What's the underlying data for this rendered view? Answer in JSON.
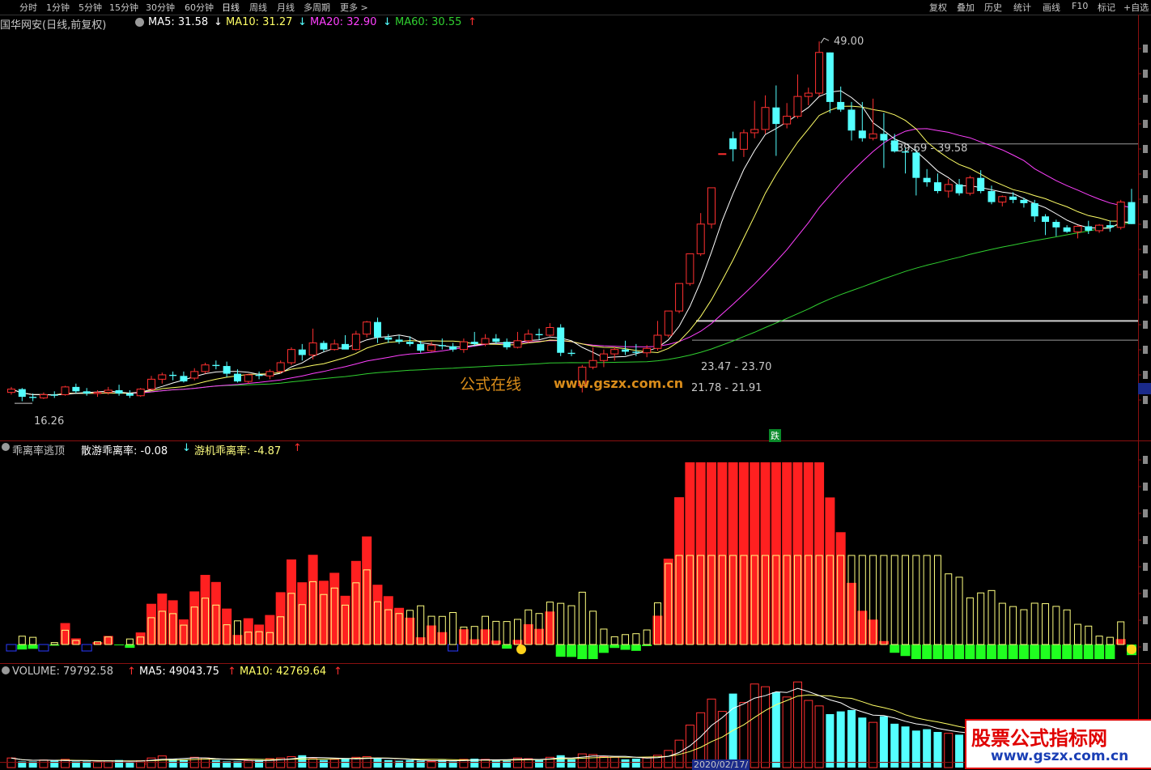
{
  "toolbar": {
    "periods": [
      "分时",
      "1分钟",
      "5分钟",
      "15分钟",
      "30分钟",
      "60分钟",
      "日线",
      "周线",
      "月线",
      "多周期",
      "更多"
    ],
    "active": "日线",
    "right": [
      "复权",
      "叠加",
      "历史",
      "统计",
      "画线",
      "F10",
      "标记",
      "+自选"
    ]
  },
  "header": {
    "stock": "国华网安(日线,前复权)",
    "ma5": "MA5: 31.58",
    "ma10": "MA10: 31.27",
    "ma20": "MA20: 32.90",
    "ma60": "MA60: 30.55"
  },
  "annotations": {
    "high": "49.00",
    "low": "16.26",
    "range1": "39.69 - 39.58",
    "range2": "23.47 - 23.70",
    "range3": "21.78 - 21.91",
    "die": "跌",
    "wm1": "公式在线",
    "wm2": "www.gszx.com.cn",
    "wm3a": "股票公式指标网",
    "wm3b": "www.gszx.com.cn"
  },
  "indicator": {
    "name": "乖离率逃顶",
    "s1": "散游乖离率: -0.08",
    "s2": "游机乖离率: -4.87"
  },
  "volume": {
    "v": "VOLUME: 79792.58",
    "ma5": "MA5: 49043.75",
    "ma10": "MA10: 42769.64",
    "date": "2020/02/17/"
  },
  "colors": {
    "up": "#ff3030",
    "down": "#54ffff",
    "ma5": "#ffffff",
    "ma10": "#ffff66",
    "ma20": "#ff40ff",
    "ma60": "#30d030",
    "s1": "#ff2020",
    "s2": "#ffff80"
  },
  "chart_data": {
    "type": "candlestick",
    "price_range": [
      14.5,
      51
    ],
    "candles": [
      [
        17.1,
        17.6,
        16.9,
        17.4
      ],
      [
        17.4,
        17.5,
        16.3,
        16.7
      ],
      [
        16.7,
        17.0,
        16.3,
        16.6
      ],
      [
        16.6,
        17.1,
        16.5,
        16.9
      ],
      [
        16.9,
        17.2,
        16.6,
        16.8
      ],
      [
        16.9,
        17.7,
        16.8,
        17.6
      ],
      [
        17.6,
        17.9,
        17.0,
        17.2
      ],
      [
        17.2,
        17.5,
        16.8,
        17.0
      ],
      [
        17.0,
        17.3,
        16.7,
        17.1
      ],
      [
        17.1,
        17.6,
        16.9,
        17.3
      ],
      [
        17.3,
        17.8,
        16.8,
        17.0
      ],
      [
        17.0,
        17.3,
        16.6,
        16.8
      ],
      [
        16.8,
        17.5,
        16.7,
        17.4
      ],
      [
        17.4,
        18.6,
        17.3,
        18.3
      ],
      [
        18.3,
        18.9,
        17.9,
        18.7
      ],
      [
        18.7,
        19.0,
        18.2,
        18.6
      ],
      [
        18.6,
        19.0,
        18.0,
        18.1
      ],
      [
        18.4,
        19.3,
        18.2,
        19.0
      ],
      [
        19.0,
        19.8,
        18.8,
        19.6
      ],
      [
        19.6,
        20.0,
        19.2,
        19.5
      ],
      [
        19.5,
        19.9,
        18.5,
        18.8
      ],
      [
        18.8,
        19.2,
        18.0,
        18.1
      ],
      [
        18.1,
        18.8,
        17.9,
        18.7
      ],
      [
        18.7,
        19.0,
        18.3,
        18.6
      ],
      [
        18.6,
        19.2,
        18.3,
        19.0
      ],
      [
        19.0,
        20.0,
        18.8,
        19.8
      ],
      [
        19.8,
        21.2,
        19.6,
        21.0
      ],
      [
        21.0,
        21.5,
        20.0,
        20.5
      ],
      [
        20.5,
        22.9,
        20.1,
        21.6
      ],
      [
        21.6,
        21.8,
        20.8,
        21.0
      ],
      [
        21.0,
        21.9,
        20.9,
        21.5
      ],
      [
        21.5,
        22.3,
        21.2,
        21.0
      ],
      [
        21.0,
        22.7,
        20.9,
        22.4
      ],
      [
        22.4,
        23.6,
        22.1,
        23.5
      ],
      [
        23.5,
        23.9,
        21.6,
        22.1
      ],
      [
        22.1,
        22.4,
        21.6,
        21.9
      ],
      [
        21.9,
        22.3,
        21.5,
        21.7
      ],
      [
        21.7,
        22.2,
        21.3,
        21.5
      ],
      [
        21.5,
        21.8,
        20.7,
        20.9
      ],
      [
        20.9,
        21.7,
        20.8,
        21.4
      ],
      [
        21.4,
        22.0,
        21.0,
        21.3
      ],
      [
        21.3,
        21.6,
        20.8,
        21.0
      ],
      [
        21.0,
        22.0,
        20.7,
        21.7
      ],
      [
        21.7,
        22.6,
        21.3,
        21.5
      ],
      [
        21.5,
        22.4,
        21.3,
        22.0
      ],
      [
        22.0,
        22.4,
        21.5,
        21.7
      ],
      [
        21.7,
        22.0,
        21.0,
        21.2
      ],
      [
        21.2,
        22.6,
        21.1,
        21.8
      ],
      [
        21.8,
        22.8,
        21.6,
        22.4
      ],
      [
        22.4,
        22.9,
        21.9,
        22.3
      ],
      [
        22.3,
        23.4,
        22.2,
        23.0
      ],
      [
        23.0,
        23.3,
        20.4,
        20.7
      ],
      [
        20.7,
        21.0,
        20.4,
        20.6
      ],
      [
        17.7,
        19.6,
        17.1,
        19.4
      ],
      [
        19.4,
        21.2,
        19.2,
        20.0
      ],
      [
        20.0,
        21.0,
        19.4,
        20.6
      ],
      [
        20.6,
        21.2,
        20.0,
        21.0
      ],
      [
        21.0,
        21.8,
        20.5,
        20.8
      ],
      [
        20.8,
        21.5,
        20.4,
        20.7
      ],
      [
        20.7,
        21.4,
        20.3,
        21.1
      ],
      [
        21.1,
        23.6,
        20.9,
        22.3
      ],
      [
        22.3,
        24.5,
        22.1,
        24.5
      ],
      [
        24.5,
        27.0,
        24.3,
        27.0
      ],
      [
        27.0,
        29.7,
        26.8,
        29.7
      ],
      [
        29.7,
        33.4,
        29.5,
        32.4
      ],
      [
        32.4,
        35.7,
        32.0,
        35.7
      ],
      [
        38.8,
        38.8,
        38.8,
        38.8
      ],
      [
        40.2,
        40.8,
        38.1,
        39.2
      ],
      [
        39.2,
        41.0,
        38.5,
        40.7
      ],
      [
        40.7,
        43.6,
        40.2,
        41.0
      ],
      [
        41.0,
        44.1,
        40.6,
        43.0
      ],
      [
        43.0,
        45.0,
        38.6,
        41.5
      ],
      [
        41.5,
        43.4,
        41.1,
        42.2
      ],
      [
        42.2,
        46.0,
        42.0,
        44.0
      ],
      [
        44.0,
        44.8,
        43.2,
        44.3
      ],
      [
        44.3,
        49.0,
        44.0,
        48.0
      ],
      [
        48.0,
        48.0,
        42.5,
        43.5
      ],
      [
        43.5,
        44.9,
        42.6,
        42.8
      ],
      [
        42.8,
        43.5,
        40.0,
        40.9
      ],
      [
        40.9,
        43.5,
        39.9,
        40.2
      ],
      [
        40.2,
        43.8,
        40.0,
        40.6
      ],
      [
        40.6,
        42.5,
        37.5,
        40.0
      ],
      [
        40.0,
        40.6,
        38.9,
        39.0
      ],
      [
        39.0,
        39.4,
        37.0,
        38.9
      ],
      [
        38.9,
        39.2,
        35.0,
        36.6
      ],
      [
        36.6,
        37.4,
        35.8,
        36.2
      ],
      [
        36.2,
        37.0,
        35.2,
        35.4
      ],
      [
        35.4,
        36.5,
        34.8,
        36.0
      ],
      [
        36.0,
        36.5,
        35.0,
        35.2
      ],
      [
        35.2,
        36.8,
        35.0,
        36.6
      ],
      [
        36.6,
        37.3,
        35.2,
        35.4
      ],
      [
        35.4,
        35.9,
        34.2,
        34.4
      ],
      [
        34.4,
        35.0,
        34.0,
        34.9
      ],
      [
        34.9,
        35.3,
        34.3,
        34.6
      ],
      [
        34.6,
        34.8,
        33.9,
        34.3
      ],
      [
        34.3,
        34.6,
        32.6,
        33.1
      ],
      [
        33.1,
        33.3,
        31.4,
        32.6
      ],
      [
        32.6,
        32.8,
        31.3,
        32.1
      ],
      [
        32.1,
        32.3,
        31.6,
        31.7
      ],
      [
        31.7,
        32.3,
        31.1,
        32.2
      ],
      [
        32.2,
        32.7,
        31.5,
        31.8
      ],
      [
        31.8,
        32.4,
        31.6,
        32.3
      ],
      [
        32.3,
        32.7,
        31.7,
        32.1
      ],
      [
        32.1,
        34.6,
        31.9,
        34.4
      ],
      [
        34.4,
        35.6,
        32.4,
        32.4
      ]
    ],
    "volume": [
      14,
      9,
      9,
      11,
      10,
      12,
      9,
      9,
      8,
      10,
      11,
      8,
      10,
      14,
      17,
      13,
      12,
      15,
      14,
      11,
      9,
      9,
      10,
      11,
      13,
      14,
      16,
      18,
      13,
      11,
      12,
      13,
      15,
      16,
      13,
      11,
      10,
      11,
      10,
      9,
      11,
      9,
      12,
      13,
      12,
      11,
      10,
      14,
      13,
      11,
      15,
      18,
      12,
      20,
      19,
      16,
      15,
      12,
      13,
      14,
      18,
      25,
      40,
      62,
      80,
      100,
      82,
      108,
      95,
      122,
      118,
      110,
      103,
      125,
      98,
      90,
      78,
      82,
      84,
      73,
      66,
      75,
      64,
      60,
      54,
      56,
      52,
      50,
      48,
      46,
      44,
      42,
      40,
      38,
      36,
      36,
      35,
      34,
      33,
      32,
      32,
      31,
      34,
      38,
      42
    ]
  }
}
